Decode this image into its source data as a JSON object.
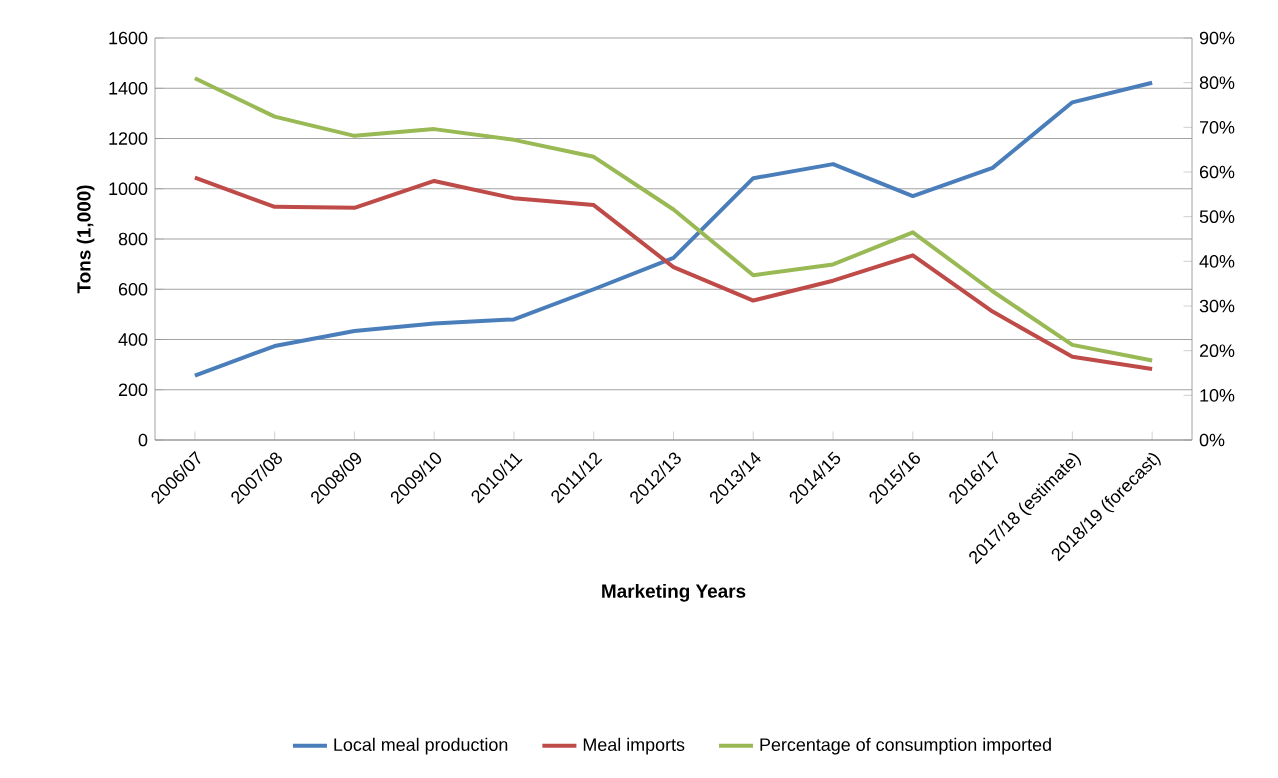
{
  "chart_data": {
    "type": "line",
    "xlabel": "Marketing Years",
    "ylabel": "Tons (1,000)",
    "categories": [
      "2006/07",
      "2007/08",
      "2008/09",
      "2009/10",
      "2010/11",
      "2011/12",
      "2012/13",
      "2013/14",
      "2014/15",
      "2015/16",
      "2016/17",
      "2017/18 (estimate)",
      "2018/19 (forecast)"
    ],
    "series": [
      {
        "name": "Local meal production",
        "color": "#4a7ebb",
        "values": [
          256,
          374,
          434,
          464,
          480,
          600,
          725,
          1042,
          1098,
          971,
          1083,
          1344,
          1422
        ]
      },
      {
        "name": "Meal imports",
        "color": "#be4b48",
        "values": [
          1044,
          928,
          924,
          1031,
          962,
          935,
          688,
          555,
          634,
          735,
          511,
          331,
          283
        ]
      },
      {
        "name": "Percentage of consumption imported",
        "color": "#98b954",
        "axis": "y2",
        "values": [
          81.0,
          72.4,
          68.1,
          69.6,
          67.2,
          63.4,
          51.6,
          36.9,
          39.3,
          46.5,
          33.3,
          21.3,
          17.8
        ]
      }
    ],
    "ylim": [
      0,
      1600
    ],
    "yticks": [
      0,
      200,
      400,
      600,
      800,
      1000,
      1200,
      1400,
      1600
    ],
    "y2lim": [
      0,
      90
    ],
    "y2ticks": [
      {
        "value": 0,
        "label": "0%"
      },
      {
        "value": 10,
        "label": "10%"
      },
      {
        "value": 20,
        "label": "20%"
      },
      {
        "value": 30,
        "label": "30%"
      },
      {
        "value": 40,
        "label": "40%"
      },
      {
        "value": 50,
        "label": "50%"
      },
      {
        "value": 60,
        "label": "60%"
      },
      {
        "value": 70,
        "label": "70%"
      },
      {
        "value": 80,
        "label": "80%"
      },
      {
        "value": 90,
        "label": "90%"
      }
    ],
    "grid": "y",
    "legend": "bottom"
  }
}
